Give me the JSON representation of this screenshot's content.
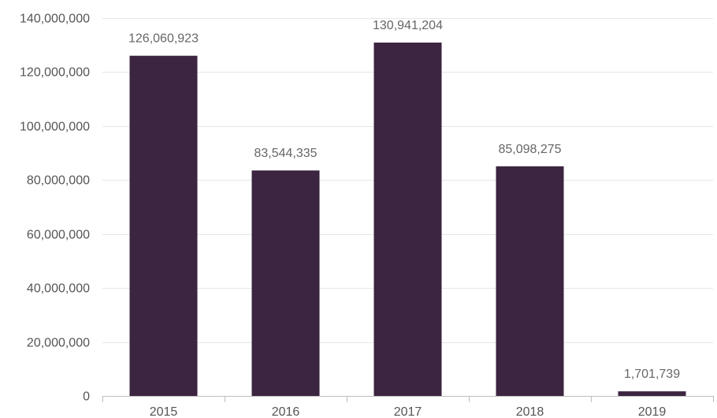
{
  "chart_data": {
    "type": "bar",
    "categories": [
      "2015",
      "2016",
      "2017",
      "2018",
      "2019"
    ],
    "values": [
      126060923,
      83544335,
      130941204,
      85098275,
      1701739
    ],
    "data_labels": [
      "126,060,923",
      "83,544,335",
      "130,941,204",
      "85,098,275",
      "1,701,739"
    ],
    "ylim": [
      0,
      140000000
    ],
    "yticks": [
      0,
      20000000,
      40000000,
      60000000,
      80000000,
      100000000,
      120000000,
      140000000
    ],
    "ytick_labels": [
      "0",
      "20,000,000",
      "40,000,000",
      "60,000,000",
      "80,000,000",
      "100,000,000",
      "120,000,000",
      "140,000,000"
    ],
    "grid": true,
    "legend": "none",
    "bar_color": "#3c2541"
  }
}
